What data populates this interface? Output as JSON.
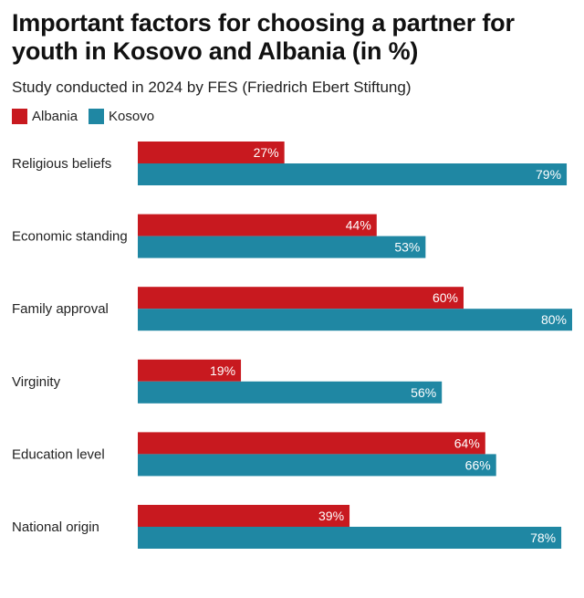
{
  "chart_data": {
    "type": "bar",
    "orientation": "horizontal",
    "title": "Important factors for choosing a partner for youth in Kosovo and Albania (in %)",
    "subtitle": "Study conducted in 2024 by FES (Friedrich Ebert Stiftung)",
    "categories": [
      "Religious beliefs",
      "Economic standing",
      "Family approval",
      "Virginity",
      "Education level",
      "National origin"
    ],
    "series": [
      {
        "name": "Albania",
        "color": "#c8191f",
        "values": [
          27,
          44,
          60,
          19,
          64,
          39
        ]
      },
      {
        "name": "Kosovo",
        "color": "#1f87a3",
        "values": [
          79,
          53,
          80,
          56,
          66,
          78
        ]
      }
    ],
    "value_suffix": "%",
    "xlim": [
      0,
      80
    ],
    "grid": false,
    "legend_position": "top-left"
  }
}
